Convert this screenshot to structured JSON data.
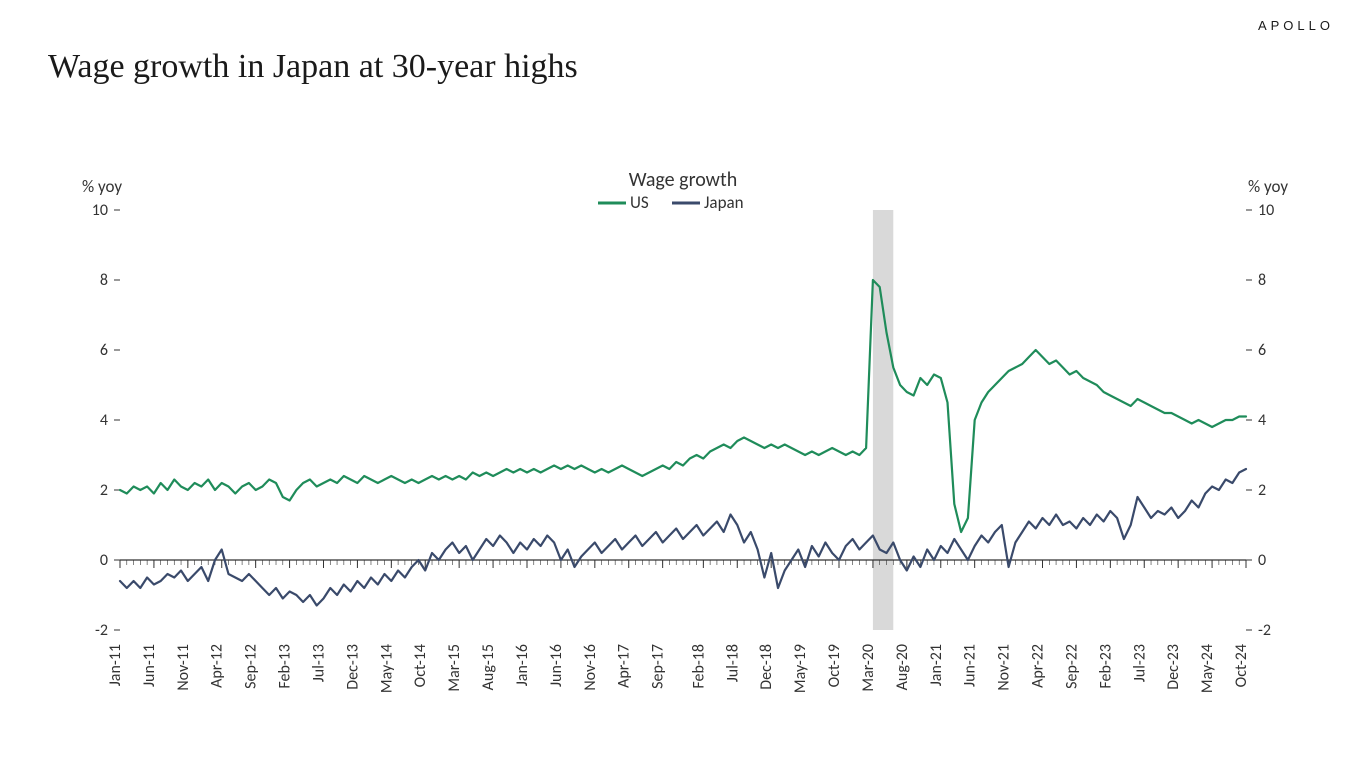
{
  "brand": "APOLLO",
  "title": "Wage growth in Japan at 30-year highs",
  "chart": {
    "type": "line",
    "subtitle": "Wage growth",
    "y_axis_label_left": "% yoy",
    "y_axis_label_right": "% yoy",
    "ylim": [
      -2,
      10
    ],
    "ytick_step": 2,
    "yticks": [
      -2,
      0,
      2,
      4,
      6,
      8,
      10
    ],
    "x_categories": [
      "Jan-11",
      "Jun-11",
      "Nov-11",
      "Apr-12",
      "Sep-12",
      "Feb-13",
      "Jul-13",
      "Dec-13",
      "May-14",
      "Oct-14",
      "Mar-15",
      "Aug-15",
      "Jan-16",
      "Jun-16",
      "Nov-16",
      "Apr-17",
      "Sep-17",
      "Feb-18",
      "Jul-18",
      "Dec-18",
      "May-19",
      "Oct-19",
      "Mar-20",
      "Aug-20",
      "Jan-21",
      "Jun-21",
      "Nov-21",
      "Apr-22",
      "Sep-22",
      "Feb-23",
      "Jul-23",
      "Dec-23",
      "May-24",
      "Oct-24"
    ],
    "x_count": 167,
    "axis_color": "#333333",
    "tick_color": "#333333",
    "tick_fontsize": 16,
    "axis_label_fontsize": 17,
    "subtitle_fontsize": 20,
    "legend_fontsize": 17,
    "line_width": 2.2,
    "background_color": "#ffffff",
    "recession_band": {
      "start_index": 111,
      "end_index": 114,
      "color": "#d9d9d9"
    },
    "series": [
      {
        "name": "US",
        "color": "#1f8c5a",
        "values": [
          2.0,
          1.9,
          2.1,
          2.0,
          2.1,
          1.9,
          2.2,
          2.0,
          2.3,
          2.1,
          2.0,
          2.2,
          2.1,
          2.3,
          2.0,
          2.2,
          2.1,
          1.9,
          2.1,
          2.2,
          2.0,
          2.1,
          2.3,
          2.2,
          1.8,
          1.7,
          2.0,
          2.2,
          2.3,
          2.1,
          2.2,
          2.3,
          2.2,
          2.4,
          2.3,
          2.2,
          2.4,
          2.3,
          2.2,
          2.3,
          2.4,
          2.3,
          2.2,
          2.3,
          2.2,
          2.3,
          2.4,
          2.3,
          2.4,
          2.3,
          2.4,
          2.3,
          2.5,
          2.4,
          2.5,
          2.4,
          2.5,
          2.6,
          2.5,
          2.6,
          2.5,
          2.6,
          2.5,
          2.6,
          2.7,
          2.6,
          2.7,
          2.6,
          2.7,
          2.6,
          2.5,
          2.6,
          2.5,
          2.6,
          2.7,
          2.6,
          2.5,
          2.4,
          2.5,
          2.6,
          2.7,
          2.6,
          2.8,
          2.7,
          2.9,
          3.0,
          2.9,
          3.1,
          3.2,
          3.3,
          3.2,
          3.4,
          3.5,
          3.4,
          3.3,
          3.2,
          3.3,
          3.2,
          3.3,
          3.2,
          3.1,
          3.0,
          3.1,
          3.0,
          3.1,
          3.2,
          3.1,
          3.0,
          3.1,
          3.0,
          3.2,
          8.0,
          7.8,
          6.5,
          5.5,
          5.0,
          4.8,
          4.7,
          5.2,
          5.0,
          5.3,
          5.2,
          4.5,
          1.6,
          0.8,
          1.2,
          4.0,
          4.5,
          4.8,
          5.0,
          5.2,
          5.4,
          5.5,
          5.6,
          5.8,
          6.0,
          5.8,
          5.6,
          5.7,
          5.5,
          5.3,
          5.4,
          5.2,
          5.1,
          5.0,
          4.8,
          4.7,
          4.6,
          4.5,
          4.4,
          4.6,
          4.5,
          4.4,
          4.3,
          4.2,
          4.2,
          4.1,
          4.0,
          3.9,
          4.0,
          3.9,
          3.8,
          3.9,
          4.0,
          4.0,
          4.1,
          4.1
        ]
      },
      {
        "name": "Japan",
        "color": "#3a4a6b",
        "values": [
          -0.6,
          -0.8,
          -0.6,
          -0.8,
          -0.5,
          -0.7,
          -0.6,
          -0.4,
          -0.5,
          -0.3,
          -0.6,
          -0.4,
          -0.2,
          -0.6,
          0.0,
          0.3,
          -0.4,
          -0.5,
          -0.6,
          -0.4,
          -0.6,
          -0.8,
          -1.0,
          -0.8,
          -1.1,
          -0.9,
          -1.0,
          -1.2,
          -1.0,
          -1.3,
          -1.1,
          -0.8,
          -1.0,
          -0.7,
          -0.9,
          -0.6,
          -0.8,
          -0.5,
          -0.7,
          -0.4,
          -0.6,
          -0.3,
          -0.5,
          -0.2,
          0.0,
          -0.3,
          0.2,
          0.0,
          0.3,
          0.5,
          0.2,
          0.4,
          0.0,
          0.3,
          0.6,
          0.4,
          0.7,
          0.5,
          0.2,
          0.5,
          0.3,
          0.6,
          0.4,
          0.7,
          0.5,
          0.0,
          0.3,
          -0.2,
          0.1,
          0.3,
          0.5,
          0.2,
          0.4,
          0.6,
          0.3,
          0.5,
          0.7,
          0.4,
          0.6,
          0.8,
          0.5,
          0.7,
          0.9,
          0.6,
          0.8,
          1.0,
          0.7,
          0.9,
          1.1,
          0.8,
          1.3,
          1.0,
          0.5,
          0.8,
          0.3,
          -0.5,
          0.2,
          -0.8,
          -0.3,
          0.0,
          0.3,
          -0.2,
          0.4,
          0.1,
          0.5,
          0.2,
          0.0,
          0.4,
          0.6,
          0.3,
          0.5,
          0.7,
          0.3,
          0.2,
          0.5,
          0.0,
          -0.3,
          0.1,
          -0.2,
          0.3,
          0.0,
          0.4,
          0.2,
          0.6,
          0.3,
          0.0,
          0.4,
          0.7,
          0.5,
          0.8,
          1.0,
          -0.2,
          0.5,
          0.8,
          1.1,
          0.9,
          1.2,
          1.0,
          1.3,
          1.0,
          1.1,
          0.9,
          1.2,
          1.0,
          1.3,
          1.1,
          1.4,
          1.2,
          0.6,
          1.0,
          1.8,
          1.5,
          1.2,
          1.4,
          1.3,
          1.5,
          1.2,
          1.4,
          1.7,
          1.5,
          1.9,
          2.1,
          2.0,
          2.3,
          2.2,
          2.5,
          2.6
        ]
      }
    ]
  }
}
